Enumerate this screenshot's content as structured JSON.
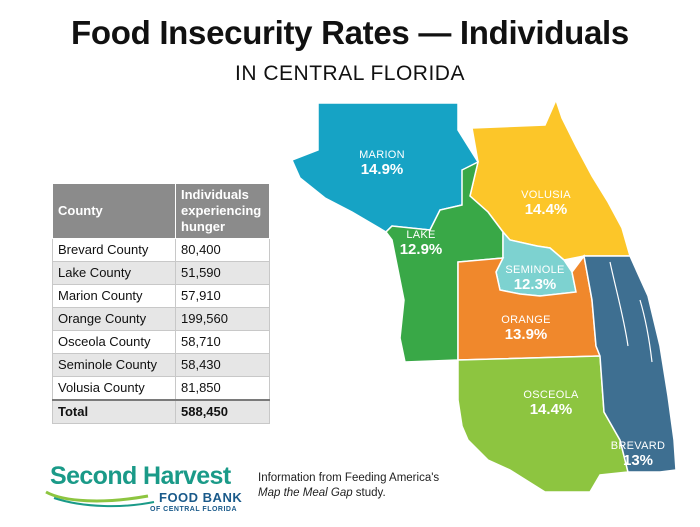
{
  "title": "Food Insecurity Rates — Individuals",
  "subtitle": "IN CENTRAL FLORIDA",
  "map": {
    "counties": [
      {
        "name": "MARION",
        "rate": "14.9%",
        "color": "#16a3c5"
      },
      {
        "name": "VOLUSIA",
        "rate": "14.4%",
        "color": "#fcc629"
      },
      {
        "name": "LAKE",
        "rate": "12.9%",
        "color": "#39a847"
      },
      {
        "name": "SEMINOLE",
        "rate": "12.3%",
        "color": "#7dd2d0"
      },
      {
        "name": "ORANGE",
        "rate": "13.9%",
        "color": "#f0882c"
      },
      {
        "name": "OSCEOLA",
        "rate": "14.4%",
        "color": "#8dc540"
      },
      {
        "name": "BREVARD",
        "rate": "13%",
        "color": "#3e6f91"
      }
    ]
  },
  "table": {
    "headers": [
      "County",
      "Individuals experiencing hunger"
    ],
    "rows": [
      [
        "Brevard County",
        "80,400"
      ],
      [
        "Lake County",
        "51,590"
      ],
      [
        "Marion County",
        "57,910"
      ],
      [
        "Orange County",
        "199,560"
      ],
      [
        "Osceola County",
        "58,710"
      ],
      [
        "Seminole County",
        "58,430"
      ],
      [
        "Volusia County",
        "81,850"
      ]
    ],
    "total": [
      "Total",
      "588,450"
    ]
  },
  "logo": {
    "line1": "Second Harvest",
    "line2": "FOOD BANK",
    "line3": "OF CENTRAL FLORIDA"
  },
  "source": {
    "line1": "Information from Feeding America's",
    "line2_italic": "Map the Meal Gap",
    "line2_rest": " study."
  }
}
